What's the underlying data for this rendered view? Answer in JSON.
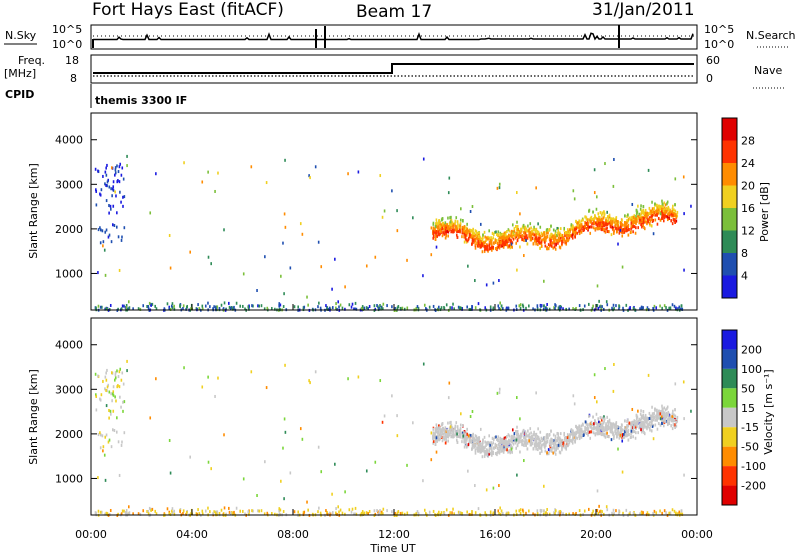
{
  "header": {
    "station": "Fort Hays East (fitACF)",
    "beam": "Beam 17",
    "date": "31/Jan/2011"
  },
  "top_panels": {
    "nsky_label": "N.Sky",
    "nsearch_label": "N.Search",
    "noise_ticks": [
      "10^5",
      "10^0"
    ],
    "noise_ticks_right": [
      "10^5",
      "10^0"
    ],
    "freq_label": "Freq.",
    "freq_unit": "[MHz]",
    "freq_ticks": [
      "18",
      "8"
    ],
    "nave_label": "Nave",
    "nave_ticks": [
      "60",
      "0"
    ],
    "cpid_label": "CPID",
    "cpid_value": "themis 3300 IF"
  },
  "chart_data": [
    {
      "type": "heatmap",
      "panel": "power",
      "ylabel": "Slant Range [km]",
      "y_ticks": [
        "1000",
        "2000",
        "3000",
        "4000"
      ],
      "ylim": [
        180,
        4600
      ],
      "xlim": [
        0,
        24
      ],
      "colorbar_label": "Power [dB]",
      "colorbar_ticks": [
        "4",
        "8",
        "12",
        "16",
        "20",
        "24",
        "28"
      ],
      "colorbar_range": [
        0,
        32
      ],
      "colors": [
        "#1a1ae0",
        "#1f4fb0",
        "#2e8b57",
        "#7bbf3a",
        "#f0d020",
        "#ff8c00",
        "#ff3300",
        "#e00000"
      ]
    },
    {
      "type": "heatmap",
      "panel": "velocity",
      "ylabel": "Slant Range [km]",
      "y_ticks": [
        "1000",
        "2000",
        "3000",
        "4000"
      ],
      "ylim": [
        180,
        4600
      ],
      "xlim": [
        0,
        24
      ],
      "x_ticks": [
        "00:00",
        "04:00",
        "08:00",
        "12:00",
        "16:00",
        "20:00",
        "00:00"
      ],
      "xlabel": "Time UT",
      "colorbar_label": "Velocity [m s⁻¹]",
      "colorbar_ticks": [
        "200",
        "100",
        "50",
        "15",
        "-15",
        "-50",
        "-100",
        "-200"
      ],
      "colors": [
        "#1a1ae0",
        "#1f4fb0",
        "#2e8b57",
        "#7bd63a",
        "#c8c8c8",
        "#f0d020",
        "#ff8c00",
        "#ff3300",
        "#e00000"
      ]
    }
  ]
}
